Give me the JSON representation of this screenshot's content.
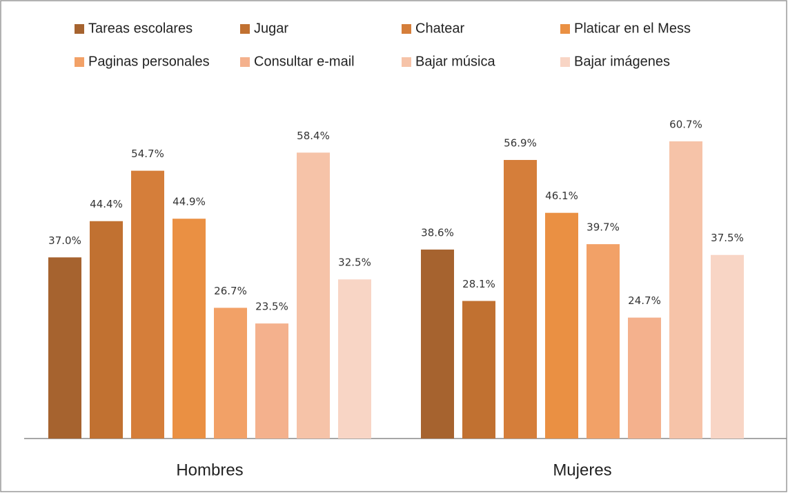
{
  "chart_data": {
    "type": "bar",
    "categories": [
      "Hombres",
      "Mujeres"
    ],
    "series": [
      {
        "name": "Tareas escolares",
        "color": "#a6632f",
        "values": [
          37.0,
          38.6
        ],
        "value_labels": [
          "37.0%",
          "38.6%"
        ]
      },
      {
        "name": "Jugar",
        "color": "#c17131",
        "values": [
          44.4,
          28.1
        ],
        "value_labels": [
          "44.4%",
          "28.1%"
        ]
      },
      {
        "name": "Chatear",
        "color": "#d57e3a",
        "values": [
          54.7,
          56.9
        ],
        "value_labels": [
          "54.7%",
          "56.9%"
        ]
      },
      {
        "name": "Platicar en el Mess",
        "color": "#ea9043",
        "values": [
          44.9,
          46.1
        ],
        "value_labels": [
          "44.9%",
          "46.1%"
        ]
      },
      {
        "name": "Paginas personales",
        "color": "#f2a167",
        "values": [
          26.7,
          39.7
        ],
        "value_labels": [
          "26.7%",
          "39.7%"
        ]
      },
      {
        "name": "Consultar e-mail",
        "color": "#f4b18d",
        "values": [
          23.5,
          24.7
        ],
        "value_labels": [
          "23.5%",
          "24.7%"
        ]
      },
      {
        "name": "Bajar música",
        "color": "#f6c3a8",
        "values": [
          58.4,
          60.7
        ],
        "value_labels": [
          "58.4%",
          "60.7%"
        ]
      },
      {
        "name": "Bajar imágenes",
        "color": "#f8d5c5",
        "values": [
          32.5,
          37.5
        ],
        "value_labels": [
          "32.5%",
          "37.5%"
        ]
      }
    ]
  }
}
